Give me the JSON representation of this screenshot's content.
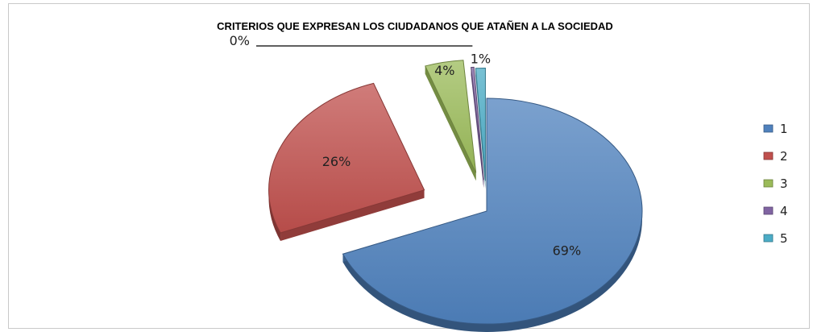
{
  "chart_data": {
    "type": "pie",
    "style": "3d-exploded",
    "title": "CRITERIOS QUE EXPRESAN LOS CIUDADANOS QUE ATAÑEN A LA SOCIEDAD",
    "categories": [
      "1",
      "2",
      "3",
      "4",
      "5"
    ],
    "values": [
      69,
      26,
      4,
      0,
      1
    ],
    "data_labels": [
      "69%",
      "26%",
      "4%",
      "0%",
      "1%"
    ],
    "colors": [
      "#4f81bd",
      "#c0504d",
      "#9bbb59",
      "#8064a2",
      "#4bacc6"
    ],
    "legend_position": "right"
  }
}
